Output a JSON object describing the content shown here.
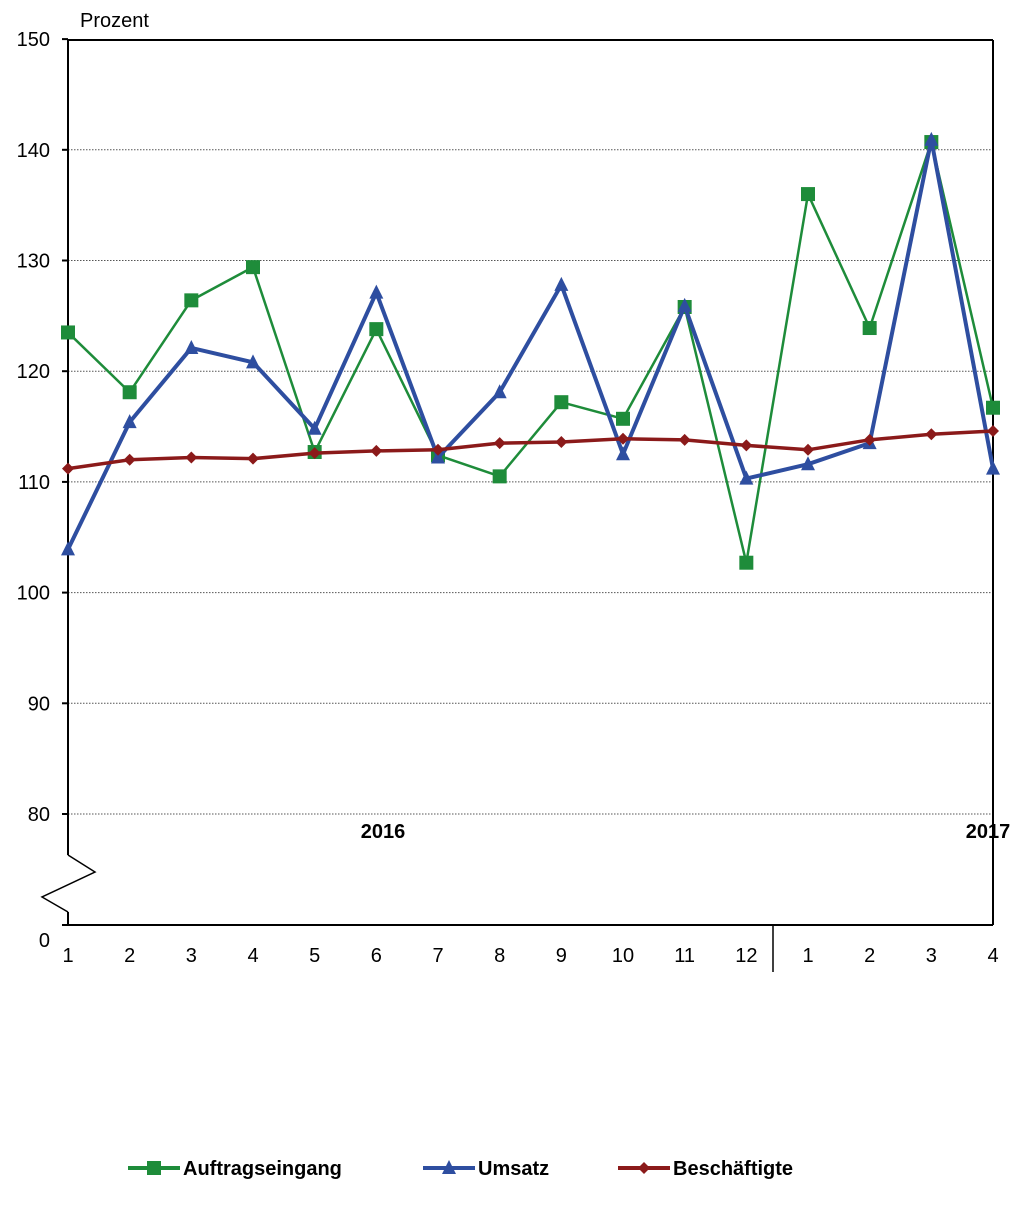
{
  "chart_data": {
    "type": "line",
    "ylabel": "Prozent",
    "ylim": [
      0,
      150
    ],
    "y_axis_break": [
      70,
      80
    ],
    "yticks": [
      "0",
      "80",
      "90",
      "100",
      "110",
      "120",
      "130",
      "140",
      "150"
    ],
    "grid": "horizontal dotted",
    "legend_position": "bottom",
    "x_labels": [
      "1",
      "2",
      "3",
      "4",
      "5",
      "6",
      "7",
      "8",
      "9",
      "10",
      "11",
      "12",
      "1",
      "2",
      "3",
      "4"
    ],
    "years": [
      {
        "label": "2016"
      },
      {
        "label": "2017"
      }
    ],
    "series": [
      {
        "name": "Auftragseingang",
        "color": "#1e8c3a",
        "marker": "square",
        "values": [
          123.5,
          118.1,
          126.4,
          129.4,
          112.7,
          123.8,
          112.4,
          110.5,
          117.2,
          115.7,
          125.8,
          102.7,
          136.0,
          123.9,
          140.7,
          116.7
        ]
      },
      {
        "name": "Umsatz",
        "color": "#2e4ea0",
        "marker": "triangle",
        "values": [
          103.9,
          115.4,
          122.1,
          120.8,
          114.8,
          127.1,
          112.2,
          118.1,
          127.8,
          112.5,
          125.9,
          110.3,
          111.6,
          113.5,
          140.9,
          111.2
        ]
      },
      {
        "name": "Beschäftigte",
        "color": "#8b1a1a",
        "marker": "diamond",
        "values": [
          111.2,
          112.0,
          112.2,
          112.1,
          112.6,
          112.8,
          112.9,
          113.5,
          113.6,
          113.9,
          113.8,
          113.3,
          112.9,
          113.8,
          114.3,
          114.6
        ]
      }
    ]
  }
}
